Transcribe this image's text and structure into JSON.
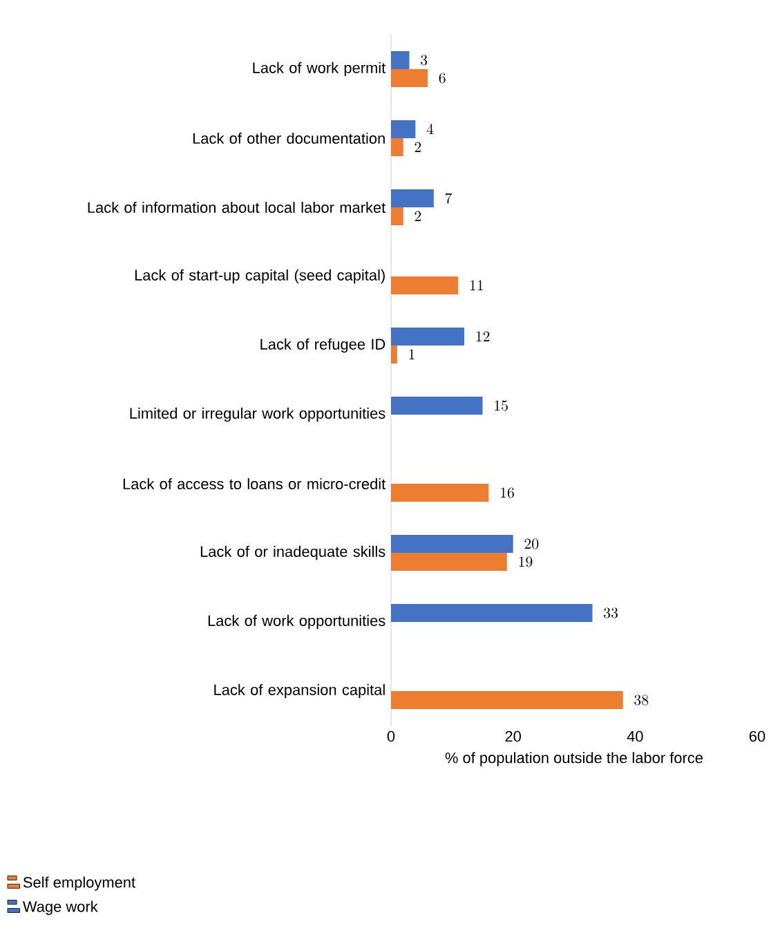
{
  "chart_data": {
    "type": "bar",
    "orientation": "horizontal",
    "xlabel": "% of population outside the labor force",
    "categories": [
      "Lack of work permit",
      "Lack of other documentation",
      "Lack of information about local labor market",
      "Lack of start-up capital (seed capital)",
      "Lack of refugee ID",
      "Limited or irregular work opportunities",
      "Lack of access to loans or micro-credit",
      "Lack of or inadequate skills",
      "Lack of work opportunities",
      "Lack of expansion capital"
    ],
    "series": [
      {
        "name": "Self employment",
        "color": "#ed7d31",
        "values": [
          6,
          2,
          2,
          11,
          1,
          null,
          16,
          19,
          null,
          38
        ]
      },
      {
        "name": "Wage work",
        "color": "#4472c4",
        "values": [
          3,
          4,
          7,
          null,
          12,
          15,
          null,
          20,
          33,
          null
        ]
      }
    ],
    "xlim": [
      0,
      60
    ],
    "xticks": [
      0,
      20,
      40,
      60
    ],
    "data_labels": true,
    "grid": false,
    "legend": "bottom left"
  }
}
